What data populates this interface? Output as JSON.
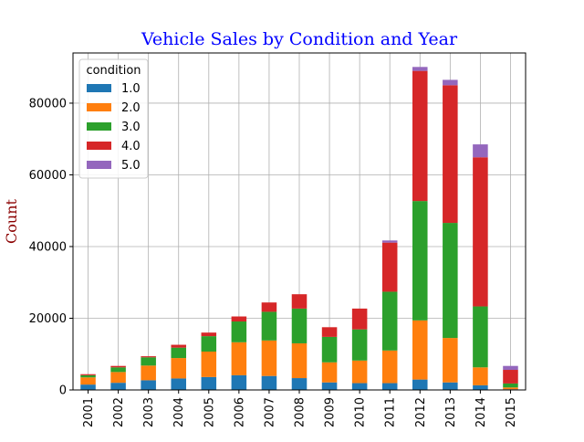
{
  "chart_data": {
    "type": "bar",
    "stacked": true,
    "title": "Vehicle Sales by Condition and Year",
    "xlabel": "",
    "ylabel": "Count",
    "ylim": [
      0,
      94000
    ],
    "yticks": [
      0,
      20000,
      40000,
      60000,
      80000
    ],
    "grid": true,
    "legend": {
      "title": "condition",
      "placement": "top-left"
    },
    "colors": {
      "title": "#0000ff",
      "ylabel": "#8b0000"
    },
    "categories": [
      "2001",
      "2002",
      "2003",
      "2004",
      "2005",
      "2006",
      "2007",
      "2008",
      "2009",
      "2010",
      "2011",
      "2012",
      "2013",
      "2014",
      "2015"
    ],
    "series": [
      {
        "name": "1.0",
        "color": "#1f77b4",
        "values": [
          1500,
          2000,
          2700,
          3200,
          3600,
          4100,
          3900,
          3300,
          2100,
          1900,
          1900,
          2900,
          2100,
          1300,
          200
        ]
      },
      {
        "name": "2.0",
        "color": "#ff7f0e",
        "values": [
          2000,
          3000,
          4100,
          5700,
          7100,
          9200,
          9900,
          9700,
          5600,
          6300,
          9100,
          16500,
          12400,
          5000,
          500
        ]
      },
      {
        "name": "3.0",
        "color": "#2ca02c",
        "values": [
          600,
          1300,
          2300,
          2900,
          4300,
          5800,
          8000,
          9700,
          7100,
          8700,
          16400,
          33300,
          32100,
          17000,
          1100
        ]
      },
      {
        "name": "4.0",
        "color": "#d62728",
        "values": [
          300,
          400,
          300,
          800,
          1000,
          1400,
          2600,
          4000,
          2700,
          5800,
          13700,
          36300,
          38400,
          41600,
          3800
        ]
      },
      {
        "name": "5.0",
        "color": "#9467bd",
        "values": [
          0,
          0,
          0,
          0,
          0,
          0,
          0,
          0,
          0,
          0,
          600,
          1100,
          1500,
          3600,
          1100
        ]
      }
    ]
  }
}
